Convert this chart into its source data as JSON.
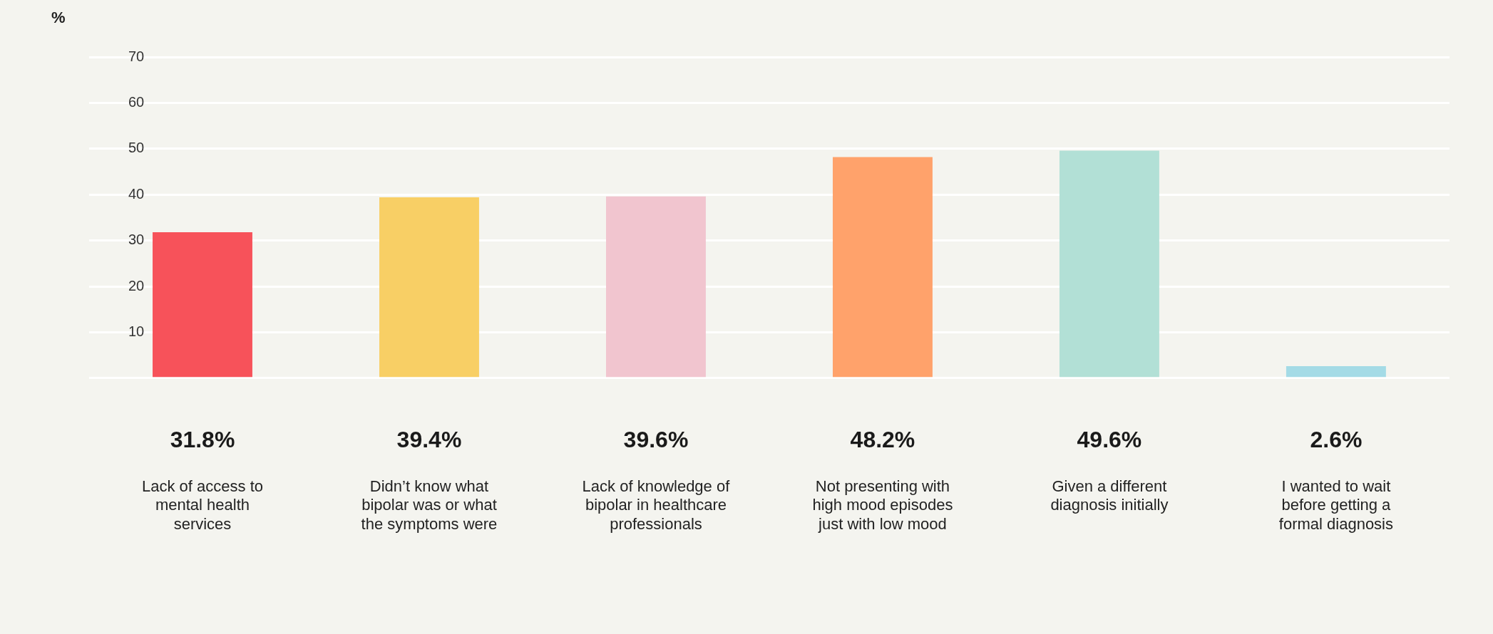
{
  "chart_data": {
    "type": "bar",
    "ylabel": "%",
    "categories": [
      "Lack of access to mental health services",
      "Didn’t know what bipolar was or what the symptoms were",
      "Lack of knowledge of bipolar in healthcare professionals",
      "Not presenting with high mood episodes just with low mood",
      "Given a different diagnosis initially",
      "I wanted to wait before getting a formal diagnosis"
    ],
    "values": [
      31.8,
      39.4,
      39.6,
      48.2,
      49.6,
      2.6
    ],
    "colors": [
      "#f7525a",
      "#f8cf65",
      "#f1c5cf",
      "#ffa26b",
      "#b2e0d6",
      "#a4dbe6"
    ],
    "value_labels": [
      "31.8%",
      "39.4%",
      "39.6%",
      "48.2%",
      "49.6%",
      "2.6%"
    ],
    "ylim": [
      0,
      70
    ],
    "yticks": [
      {
        "value": 0,
        "label": null
      },
      10,
      20,
      30,
      40,
      50,
      60,
      70
    ],
    "grid": "y",
    "legend": false
  }
}
